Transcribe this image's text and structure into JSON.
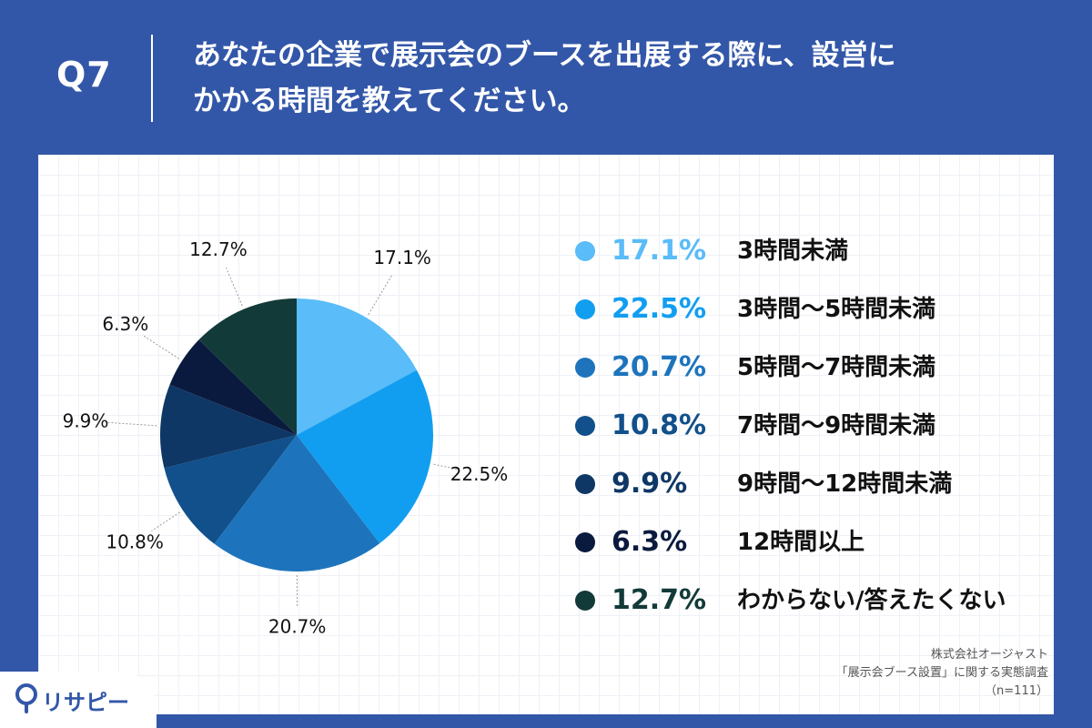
{
  "question": {
    "number": "Q7",
    "line1": "あなたの企業で展示会のブースを出展する際に、設営に",
    "line2": "かかる時間を教えてください。"
  },
  "chart_data": {
    "type": "pie",
    "start_angle_deg": 0,
    "direction": "clockwise",
    "slices": [
      {
        "label": "3時間未満",
        "value": 17.1,
        "display": "17.1%",
        "color": "#5abcf8"
      },
      {
        "label": "3時間〜5時間未満",
        "value": 22.5,
        "display": "22.5%",
        "color": "#129ef0"
      },
      {
        "label": "5時間〜7時間未満",
        "value": 20.7,
        "display": "20.7%",
        "color": "#1d74bc"
      },
      {
        "label": "7時間〜9時間未満",
        "value": 10.8,
        "display": "10.8%",
        "color": "#11508a"
      },
      {
        "label": "9時間〜12時間未満",
        "value": 9.9,
        "display": "9.9%",
        "color": "#0f3766"
      },
      {
        "label": "12時間以上",
        "value": 6.3,
        "display": "6.3%",
        "color": "#0a1a3e"
      },
      {
        "label": "わからない/答えたくない",
        "value": 12.7,
        "display": "12.7%",
        "color": "#123a38"
      }
    ],
    "legend_placement": "right"
  },
  "source": {
    "company": "株式会社オージャスト",
    "survey": "「展示会ブース設置」に関する実態調査",
    "sample": "（n=111）"
  },
  "logo": {
    "text": "リサピー",
    "icon": "pin-icon"
  }
}
